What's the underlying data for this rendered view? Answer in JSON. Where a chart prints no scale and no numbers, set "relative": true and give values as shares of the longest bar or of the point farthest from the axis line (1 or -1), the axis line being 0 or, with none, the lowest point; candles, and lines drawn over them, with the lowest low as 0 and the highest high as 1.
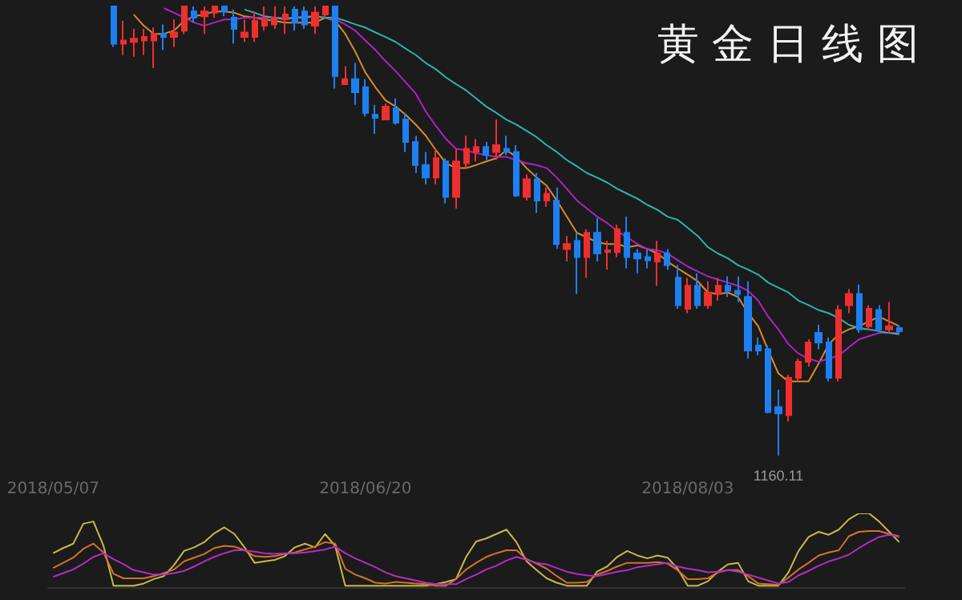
{
  "chart_data": [
    {
      "type": "candlestick",
      "title": "黄 金 日 线 图",
      "relative": true,
      "categories": [
        "2018/05/07",
        null,
        null,
        null,
        null,
        null,
        null,
        null,
        null,
        null,
        null,
        null,
        null,
        null,
        null,
        null,
        null,
        null,
        null,
        null,
        null,
        null,
        null,
        null,
        null,
        null,
        null,
        null,
        null,
        null,
        null,
        "2018/06/20",
        null,
        null,
        null,
        null,
        null,
        null,
        null,
        null,
        null,
        null,
        null,
        null,
        null,
        null,
        null,
        null,
        null,
        null,
        null,
        null,
        null,
        null,
        null,
        null,
        null,
        null,
        null,
        null,
        null,
        null,
        null,
        "2018/08/03",
        null,
        null,
        null,
        null,
        null,
        null,
        null,
        null,
        null,
        null,
        null,
        null,
        null,
        null,
        null,
        null,
        null,
        null,
        null,
        null,
        null
      ],
      "ohlc": [
        null,
        null,
        null,
        null,
        null,
        null,
        [
          1,
          1,
          0.91,
          0.917
        ],
        [
          0.917,
          0.968,
          0.892,
          0.924
        ],
        [
          0.921,
          0.95,
          0.888,
          0.928
        ],
        [
          0.924,
          0.95,
          0.892,
          0.932
        ],
        [
          0.924,
          0.953,
          0.863,
          0.939
        ],
        [
          0.939,
          0.96,
          0.903,
          0.932
        ],
        [
          0.932,
          0.971,
          0.91,
          0.942
        ],
        [
          0.946,
          1,
          0.939,
          1
        ],
        [
          0.989,
          1,
          0.964,
          0.975
        ],
        [
          0.978,
          1,
          0.939,
          0.989
        ],
        [
          0.986,
          1,
          0.975,
          1
        ],
        [
          1,
          1,
          0.978,
          0.989
        ],
        [
          0.975,
          0.993,
          0.917,
          0.95
        ],
        [
          0.932,
          0.971,
          0.921,
          0.942
        ],
        [
          0.932,
          0.989,
          0.921,
          0.968
        ],
        [
          0.957,
          1,
          0.946,
          0.971
        ],
        [
          0.96,
          1,
          0.95,
          0.975
        ],
        [
          0.971,
          1,
          0.939,
          0.982
        ],
        [
          0.993,
          1,
          0.946,
          0.964
        ],
        [
          0.989,
          1,
          0.95,
          0.96
        ],
        [
          0.957,
          1,
          0.939,
          0.986
        ],
        [
          0.982,
          1,
          0.975,
          1
        ],
        [
          1,
          1,
          0.817,
          0.845
        ],
        [
          0.827,
          0.867,
          0.827,
          0.838
        ],
        [
          0.838,
          0.874,
          0.781,
          0.809
        ],
        [
          0.82,
          0.838,
          0.755,
          0.763
        ],
        [
          0.759,
          0.781,
          0.716,
          0.752
        ],
        [
          0.748,
          0.784,
          0.748,
          0.777
        ],
        [
          0.773,
          0.795,
          0.737,
          0.741
        ],
        [
          0.748,
          0.763,
          0.676,
          0.698
        ],
        [
          0.698,
          0.712,
          0.629,
          0.647
        ],
        [
          0.647,
          0.676,
          0.604,
          0.619
        ],
        [
          0.619,
          0.683,
          0.604,
          0.662
        ],
        [
          0.655,
          0.662,
          0.561,
          0.576
        ],
        [
          0.576,
          0.683,
          0.55,
          0.655
        ],
        [
          0.651,
          0.712,
          0.64,
          0.683
        ],
        [
          0.676,
          0.705,
          0.655,
          0.687
        ],
        [
          0.687,
          0.698,
          0.658,
          0.669
        ],
        [
          0.676,
          0.748,
          0.658,
          0.691
        ],
        [
          0.683,
          0.712,
          0.669,
          0.676
        ],
        [
          0.676,
          0.691,
          0.576,
          0.579
        ],
        [
          0.576,
          0.626,
          0.568,
          0.615
        ],
        [
          0.615,
          0.629,
          0.54,
          0.568
        ],
        [
          0.568,
          0.597,
          0.554,
          0.583
        ],
        [
          0.568,
          0.597,
          0.46,
          0.471
        ],
        [
          0.46,
          0.489,
          0.432,
          0.471
        ],
        [
          0.478,
          0.496,
          0.36,
          0.442
        ],
        [
          0.442,
          0.504,
          0.396,
          0.496
        ],
        [
          0.496,
          0.529,
          0.432,
          0.45
        ],
        [
          0.453,
          0.478,
          0.414,
          0.457
        ],
        [
          0.453,
          0.514,
          0.442,
          0.504
        ],
        [
          0.496,
          0.532,
          0.417,
          0.442
        ],
        [
          0.45,
          0.46,
          0.406,
          0.439
        ],
        [
          0.442,
          0.46,
          0.417,
          0.435
        ],
        [
          0.432,
          0.478,
          0.378,
          0.45
        ],
        [
          0.45,
          0.46,
          0.414,
          0.424
        ],
        [
          0.396,
          0.424,
          0.327,
          0.335
        ],
        [
          0.327,
          0.396,
          0.317,
          0.378
        ],
        [
          0.378,
          0.406,
          0.327,
          0.335
        ],
        [
          0.335,
          0.388,
          0.327,
          0.363
        ],
        [
          0.36,
          0.396,
          0.345,
          0.378
        ],
        [
          0.378,
          0.399,
          0.353,
          0.367
        ],
        [
          0.367,
          0.399,
          0.342,
          0.36
        ],
        [
          0.353,
          0.388,
          0.216,
          0.234
        ],
        [
          0.245,
          0.263,
          0.223,
          0.234
        ],
        [
          0.237,
          0.245,
          0.094,
          0.097
        ],
        [
          0.108,
          0.147,
          0,
          0.094
        ],
        [
          0.09,
          0.18,
          0.076,
          0.173
        ],
        [
          0.173,
          0.216,
          0.165,
          0.209
        ],
        [
          0.209,
          0.259,
          0.198,
          0.252
        ],
        [
          0.273,
          0.291,
          0.237,
          0.252
        ],
        [
          0.252,
          0.263,
          0.165,
          0.173
        ],
        [
          0.173,
          0.335,
          0.165,
          0.324
        ],
        [
          0.335,
          0.371,
          0.317,
          0.36
        ],
        [
          0.36,
          0.381,
          0.273,
          0.281
        ],
        [
          0.288,
          0.335,
          0.281,
          0.327
        ],
        [
          0.324,
          0.335,
          0.273,
          0.281
        ],
        [
          0.281,
          0.342,
          0.273,
          0.288
        ],
        [
          0.284,
          0.291,
          0.273,
          0.277
        ]
      ],
      "colors": [
        null,
        null,
        null,
        null,
        null,
        null,
        "#1e7ff0",
        "#ee2f2f",
        "#ee2f2f",
        "#ee2f2f",
        "#ee2f2f",
        "#1e7ff0",
        "#ee2f2f",
        "#ee2f2f",
        "#1e7ff0",
        "#ee2f2f",
        "#ee2f2f",
        "#1e7ff0",
        "#1e7ff0",
        "#ee2f2f",
        "#ee2f2f",
        "#ee2f2f",
        "#ee2f2f",
        "#ee2f2f",
        "#1e7ff0",
        "#1e7ff0",
        "#ee2f2f",
        "#ee2f2f",
        "#1e7ff0",
        "#ee2f2f",
        "#1e7ff0",
        "#1e7ff0",
        "#1e7ff0",
        "#ee2f2f",
        "#1e7ff0",
        "#1e7ff0",
        "#1e7ff0",
        "#1e7ff0",
        "#ee2f2f",
        "#1e7ff0",
        "#ee2f2f",
        "#ee2f2f",
        "#ee2f2f",
        "#1e7ff0",
        "#ee2f2f",
        "#1e7ff0",
        "#1e7ff0",
        "#ee2f2f",
        "#1e7ff0",
        "#ee2f2f",
        "#1e7ff0",
        "#ee2f2f",
        "#1e7ff0",
        "#ee2f2f",
        "#1e7ff0",
        "#ee2f2f",
        "#ee2f2f",
        "#1e7ff0",
        "#1e7ff0",
        "#1e7ff0",
        "#ee2f2f",
        "#1e7ff0",
        "#1e7ff0",
        "#ee2f2f",
        "#1e7ff0",
        "#ee2f2f",
        "#ee2f2f",
        "#1e7ff0",
        "#1e7ff0",
        "#1e7ff0",
        "#1e7ff0",
        "#1e7ff0",
        "#1e7ff0",
        "#ee2f2f",
        "#ee2f2f",
        "#ee2f2f",
        "#1e7ff0",
        "#1e7ff0",
        "#ee2f2f",
        "#ee2f2f",
        "#1e7ff0",
        "#ee2f2f",
        "#1e7ff0",
        "#ee2f2f",
        "#1e7ff0"
      ],
      "series": [
        {
          "type": "line",
          "color": "#d98a2b",
          "values": [
            null,
            null,
            null,
            null,
            null,
            null,
            null,
            null,
            0.982,
            0.957,
            0.939,
            0.939,
            0.946,
            0.968,
            0.978,
            0.982,
            0.989,
            0.989,
            0.986,
            0.978,
            0.975,
            0.971,
            0.968,
            0.964,
            0.964,
            0.964,
            0.964,
            0.975,
            0.968,
            0.939,
            0.899,
            0.853,
            0.82,
            0.791,
            0.777,
            0.759,
            0.737,
            0.712,
            0.68,
            0.651,
            0.64,
            0.64,
            0.647,
            0.655,
            0.662,
            0.68,
            0.665,
            0.64,
            0.619,
            0.601,
            0.568,
            0.532,
            0.496,
            0.486,
            0.475,
            0.471,
            0.471,
            0.464,
            0.468,
            0.46,
            0.45,
            0.432,
            0.417,
            0.403,
            0.388,
            0.363,
            0.36,
            0.363,
            0.353,
            0.317,
            0.288,
            0.234,
            0.183,
            0.165,
            0.165,
            0.165,
            0.205,
            0.248,
            0.27,
            0.281,
            0.288,
            0.299,
            0.309,
            0.299,
            0.288
          ]
        },
        {
          "type": "line",
          "color": "#b021c8",
          "values": [
            null,
            null,
            null,
            null,
            null,
            null,
            null,
            null,
            null,
            null,
            null,
            0.996,
            0.986,
            0.975,
            0.964,
            0.957,
            0.964,
            0.971,
            0.971,
            0.975,
            0.975,
            0.975,
            0.975,
            0.975,
            0.975,
            0.978,
            0.978,
            0.975,
            0.971,
            0.96,
            0.946,
            0.924,
            0.903,
            0.878,
            0.856,
            0.831,
            0.806,
            0.766,
            0.734,
            0.705,
            0.683,
            0.68,
            0.673,
            0.669,
            0.665,
            0.665,
            0.658,
            0.651,
            0.647,
            0.64,
            0.619,
            0.594,
            0.568,
            0.55,
            0.532,
            0.518,
            0.5,
            0.486,
            0.471,
            0.46,
            0.457,
            0.45,
            0.435,
            0.421,
            0.41,
            0.399,
            0.392,
            0.385,
            0.378,
            0.367,
            0.345,
            0.309,
            0.281,
            0.248,
            0.227,
            0.216,
            0.209,
            0.216,
            0.223,
            0.241,
            0.259,
            0.266,
            0.273,
            0.273,
            0.273
          ]
        },
        {
          "type": "line",
          "color": "#2bb5a6",
          "values": [
            null,
            null,
            null,
            null,
            null,
            null,
            null,
            null,
            null,
            null,
            null,
            null,
            null,
            null,
            null,
            null,
            null,
            null,
            null,
            0.993,
            0.986,
            0.978,
            0.975,
            0.971,
            0.975,
            0.975,
            0.978,
            0.975,
            0.975,
            0.968,
            0.96,
            0.953,
            0.942,
            0.932,
            0.921,
            0.906,
            0.892,
            0.874,
            0.86,
            0.842,
            0.827,
            0.813,
            0.795,
            0.777,
            0.763,
            0.748,
            0.737,
            0.723,
            0.709,
            0.691,
            0.676,
            0.658,
            0.644,
            0.629,
            0.619,
            0.608,
            0.594,
            0.583,
            0.572,
            0.558,
            0.547,
            0.532,
            0.525,
            0.507,
            0.489,
            0.464,
            0.45,
            0.439,
            0.424,
            0.414,
            0.403,
            0.385,
            0.374,
            0.363,
            0.345,
            0.335,
            0.324,
            0.317,
            0.306,
            0.291,
            0.284,
            0.281,
            0.277,
            0.273,
            0.27
          ]
        }
      ],
      "annotations": [
        {
          "text": "1160.11",
          "y": 0
        }
      ]
    },
    {
      "type": "line",
      "relative": true,
      "tick_labels": false,
      "categories": [
        null,
        null,
        null,
        null,
        null,
        null,
        null,
        null,
        null,
        null,
        null,
        null,
        null,
        null,
        null,
        null,
        null,
        null,
        null,
        null,
        null,
        null,
        null,
        null,
        null,
        null,
        null,
        null,
        null,
        null,
        null,
        null,
        null,
        null,
        null,
        null,
        null,
        null,
        null,
        null,
        null,
        null,
        null,
        null,
        null,
        null,
        null,
        null,
        null,
        null,
        null,
        null,
        null,
        null,
        null,
        null,
        null,
        null,
        null,
        null,
        null,
        null,
        null,
        null,
        null,
        null,
        null,
        null,
        null,
        null,
        null,
        null,
        null,
        null,
        null,
        null,
        null,
        null,
        null,
        null,
        null,
        null,
        null,
        null,
        null
      ],
      "series": [
        {
          "color": "#c8b84a",
          "values": [
            0.46,
            0.53,
            0.59,
            0.86,
            0.89,
            0.56,
            0.02,
            0.02,
            0.02,
            0.05,
            0.11,
            0.15,
            0.3,
            0.49,
            0.54,
            0.61,
            0.73,
            0.81,
            0.72,
            0.54,
            0.33,
            0.35,
            0.37,
            0.42,
            0.54,
            0.59,
            0.54,
            0.72,
            0.56,
            0.02,
            0.02,
            0.02,
            0.02,
            0.02,
            0.02,
            0.02,
            0.02,
            0.02,
            0.04,
            0.07,
            0.11,
            0.41,
            0.62,
            0.66,
            0.72,
            0.78,
            0.61,
            0.35,
            0.23,
            0.12,
            0.06,
            0.02,
            0.02,
            0.02,
            0.21,
            0.28,
            0.41,
            0.49,
            0.43,
            0.39,
            0.43,
            0.4,
            0.25,
            0.02,
            0.02,
            0.08,
            0.21,
            0.31,
            0.33,
            0.08,
            0.02,
            0.02,
            0.02,
            0.2,
            0.49,
            0.68,
            0.75,
            0.71,
            0.78,
            0.92,
            1,
            1,
            0.89,
            0.75,
            0.61
          ]
        },
        {
          "color": "#d4722a",
          "values": [
            0.26,
            0.33,
            0.4,
            0.52,
            0.59,
            0.47,
            0.18,
            0.12,
            0.12,
            0.12,
            0.15,
            0.19,
            0.24,
            0.35,
            0.4,
            0.45,
            0.53,
            0.56,
            0.55,
            0.5,
            0.42,
            0.41,
            0.42,
            0.45,
            0.47,
            0.51,
            0.55,
            0.61,
            0.59,
            0.25,
            0.17,
            0.12,
            0.06,
            0.05,
            0.07,
            0.06,
            0.05,
            0.04,
            0.02,
            0.02,
            0.11,
            0.24,
            0.33,
            0.41,
            0.46,
            0.5,
            0.5,
            0.38,
            0.32,
            0.25,
            0.15,
            0.06,
            0.06,
            0.07,
            0.17,
            0.22,
            0.28,
            0.33,
            0.33,
            0.33,
            0.34,
            0.32,
            0.23,
            0.11,
            0.11,
            0.12,
            0.2,
            0.23,
            0.23,
            0.15,
            0.05,
            0.04,
            0.03,
            0.13,
            0.24,
            0.33,
            0.43,
            0.47,
            0.5,
            0.69,
            0.75,
            0.76,
            0.76,
            0.72,
            0.69
          ]
        },
        {
          "color": "#b42cc8",
          "values": [
            0.14,
            0.19,
            0.24,
            0.32,
            0.41,
            0.46,
            0.38,
            0.31,
            0.23,
            0.2,
            0.17,
            0.17,
            0.19,
            0.22,
            0.28,
            0.35,
            0.41,
            0.46,
            0.5,
            0.5,
            0.48,
            0.46,
            0.45,
            0.46,
            0.46,
            0.47,
            0.49,
            0.51,
            0.55,
            0.46,
            0.39,
            0.33,
            0.27,
            0.2,
            0.15,
            0.12,
            0.09,
            0.06,
            0.04,
            0.04,
            0.04,
            0.11,
            0.17,
            0.24,
            0.29,
            0.36,
            0.41,
            0.37,
            0.33,
            0.31,
            0.26,
            0.21,
            0.18,
            0.16,
            0.15,
            0.18,
            0.21,
            0.23,
            0.27,
            0.29,
            0.31,
            0.33,
            0.28,
            0.25,
            0.23,
            0.2,
            0.21,
            0.23,
            0.21,
            0.17,
            0.13,
            0.09,
            0.05,
            0.07,
            0.16,
            0.22,
            0.29,
            0.35,
            0.39,
            0.44,
            0.53,
            0.61,
            0.68,
            0.71,
            0.68
          ]
        }
      ]
    }
  ]
}
